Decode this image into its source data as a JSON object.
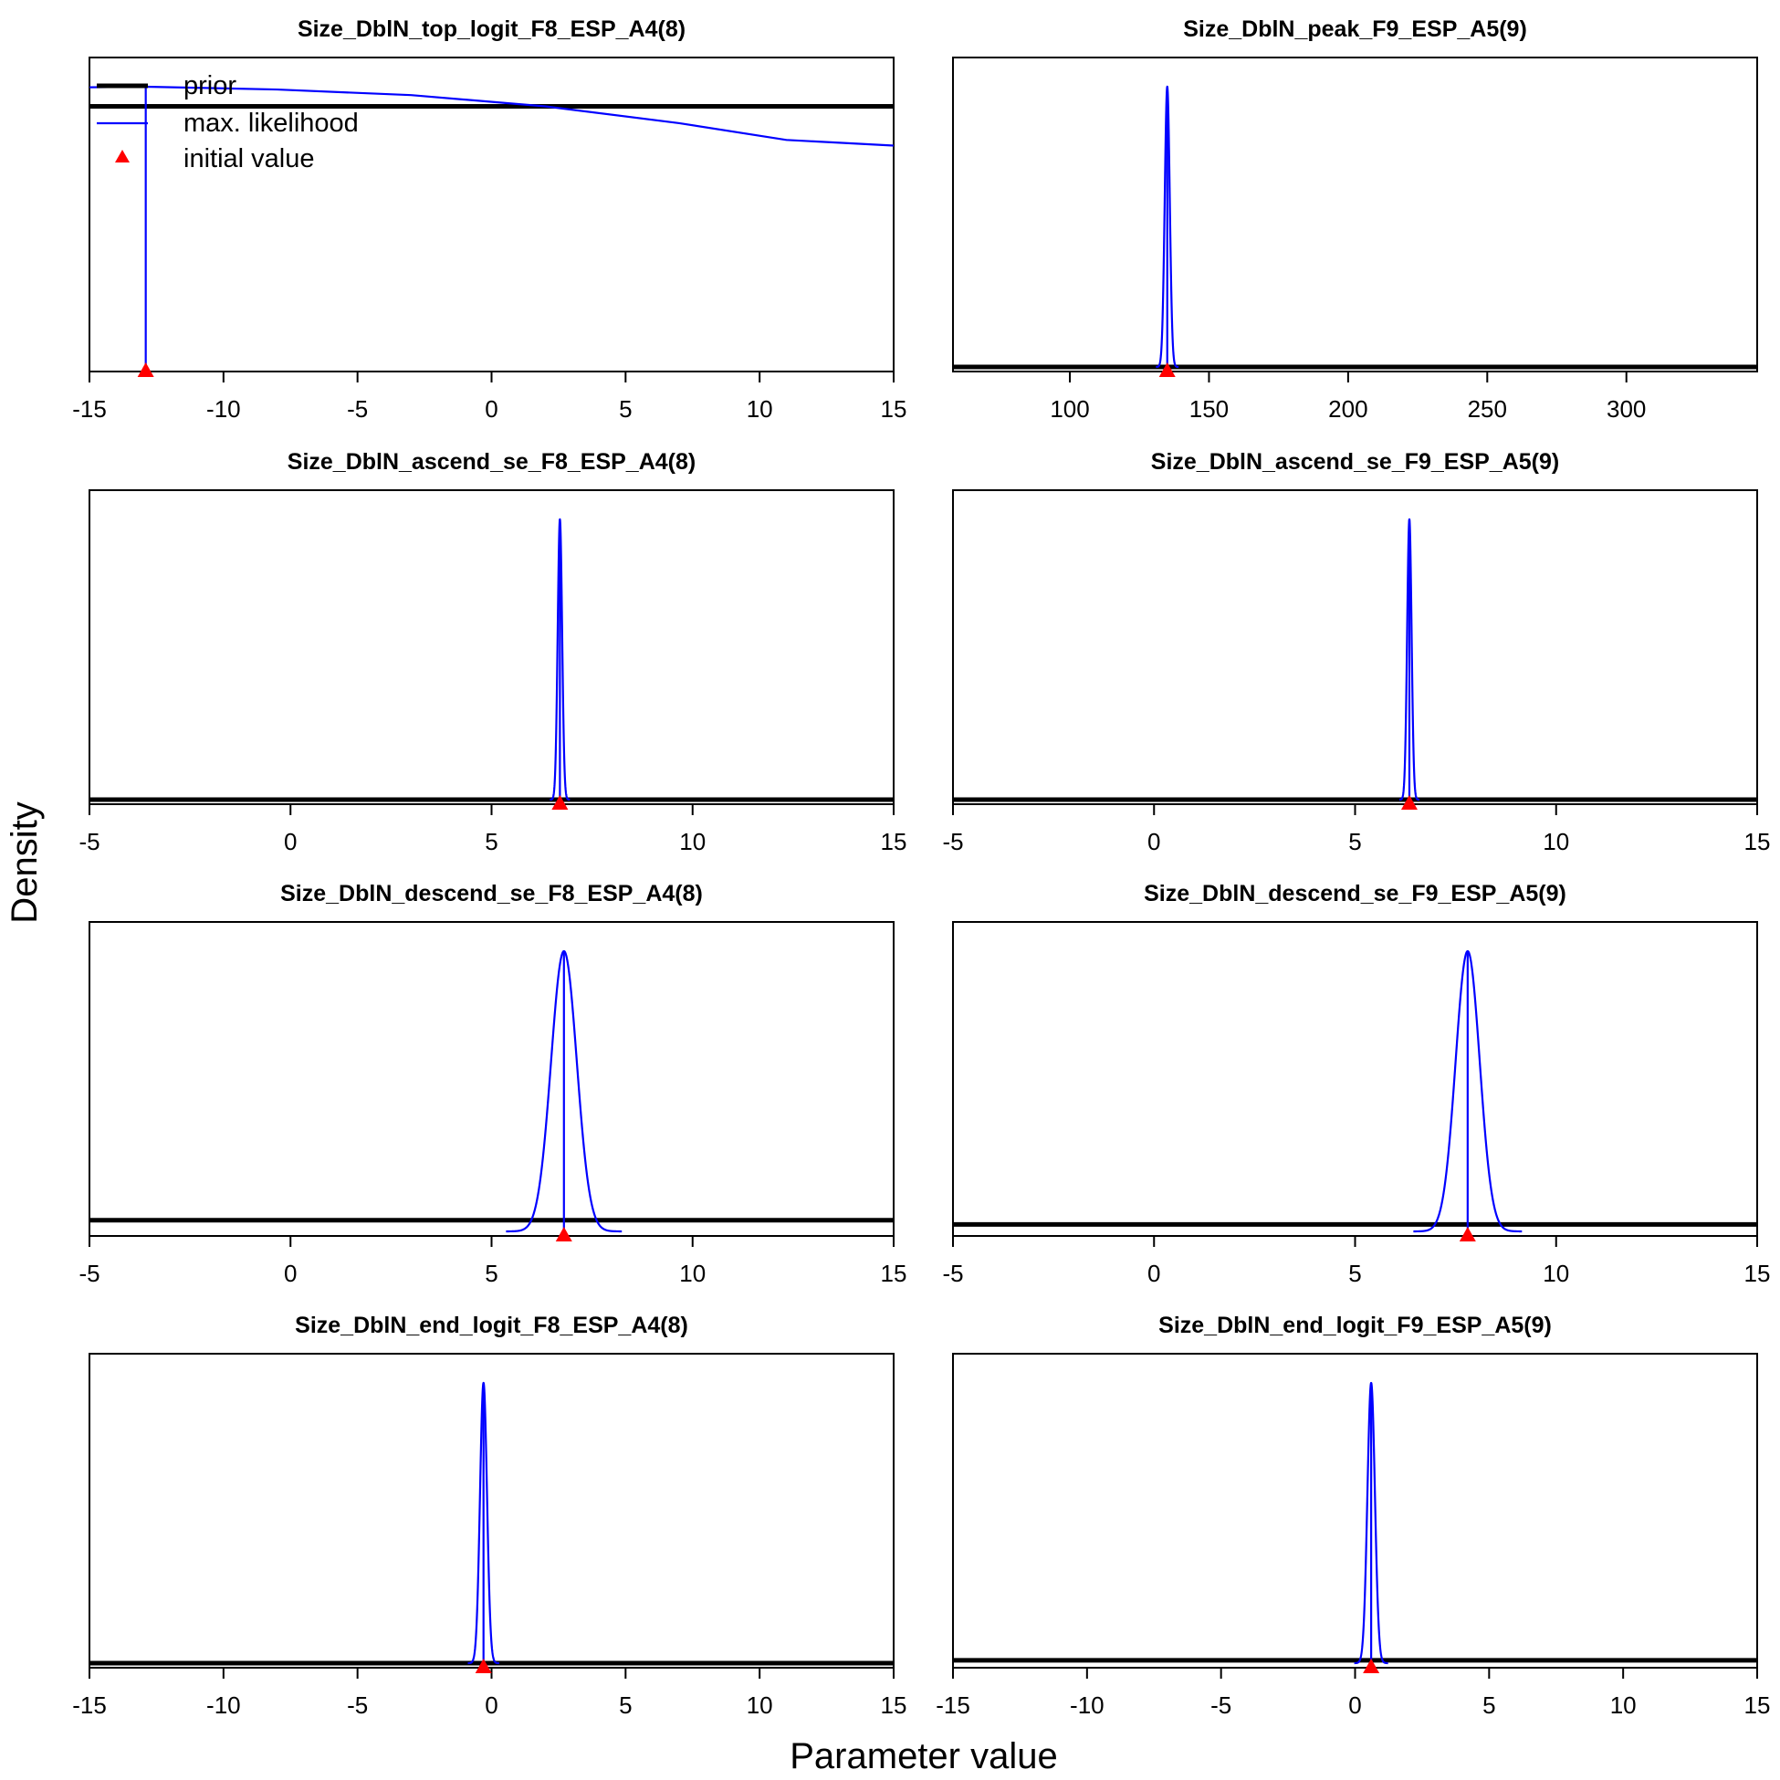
{
  "chart_data": {
    "type": "line",
    "ylabel": "Density",
    "xlabel": "Parameter value",
    "legend": {
      "placement": "top-left of first panel",
      "entries": [
        {
          "label": "prior",
          "color": "#000000",
          "style": "thick line"
        },
        {
          "label": "max. likelihood",
          "color": "#0000ff",
          "style": "line"
        },
        {
          "label": "initial value",
          "color": "#ff0000",
          "style": "triangle"
        }
      ]
    },
    "colors": {
      "prior": "#000000",
      "mle": "#0000ff",
      "initial": "#ff0000"
    },
    "panels": [
      {
        "title": "Size_DblN_top_logit_F8_ESP_A4(8)",
        "xlim": [
          -15,
          15
        ],
        "xticks": [
          "-15",
          "-10",
          "-5",
          "0",
          "5",
          "10",
          "15"
        ],
        "prior": {
          "kind": "flat",
          "level": 0.93
        },
        "mle": {
          "kind": "broad",
          "estimate": -12.9,
          "curve": [
            [
              -15,
              0.998
            ],
            [
              -12.9,
              1.0
            ],
            [
              -8,
              0.99
            ],
            [
              -3,
              0.97
            ],
            [
              2,
              0.93
            ],
            [
              7,
              0.87
            ],
            [
              11,
              0.81
            ],
            [
              15,
              0.79
            ]
          ]
        },
        "initial": -12.9,
        "legend": true
      },
      {
        "title": "Size_DblN_peak_F9_ESP_A5(9)",
        "xlim": [
          58,
          347
        ],
        "xticks": [
          "100",
          "150",
          "200",
          "250",
          "300"
        ],
        "prior": {
          "kind": "flat",
          "level": 0.0
        },
        "mle": {
          "kind": "normal",
          "estimate": 135,
          "sd": 0.9,
          "peak": 1.0
        },
        "initial": 135,
        "legend": false
      },
      {
        "title": "Size_DblN_ascend_se_F8_ESP_A4(8)",
        "xlim": [
          -5,
          15
        ],
        "xticks": [
          "-5",
          "0",
          "5",
          "10",
          "15"
        ],
        "prior": {
          "kind": "flat",
          "level": 0.0
        },
        "mle": {
          "kind": "normal",
          "estimate": 6.7,
          "sd": 0.055,
          "peak": 1.0
        },
        "initial": 6.7,
        "legend": false
      },
      {
        "title": "Size_DblN_ascend_se_F9_ESP_A5(9)",
        "xlim": [
          -5,
          15
        ],
        "xticks": [
          "-5",
          "0",
          "5",
          "10",
          "15"
        ],
        "prior": {
          "kind": "flat",
          "level": 0.0
        },
        "mle": {
          "kind": "normal",
          "estimate": 6.35,
          "sd": 0.055,
          "peak": 1.0
        },
        "initial": 6.35,
        "legend": false
      },
      {
        "title": "Size_DblN_descend_se_F8_ESP_A4(8)",
        "xlim": [
          -5,
          15
        ],
        "xticks": [
          "-5",
          "0",
          "5",
          "10",
          "15"
        ],
        "prior": {
          "kind": "flat",
          "level": 0.04
        },
        "mle": {
          "kind": "normal",
          "estimate": 6.8,
          "sd": 0.32,
          "peak": 1.0
        },
        "initial": 6.8,
        "legend": false
      },
      {
        "title": "Size_DblN_descend_se_F9_ESP_A5(9)",
        "xlim": [
          -5,
          15
        ],
        "xticks": [
          "-5",
          "0",
          "5",
          "10",
          "15"
        ],
        "prior": {
          "kind": "flat",
          "level": 0.025
        },
        "mle": {
          "kind": "normal",
          "estimate": 7.8,
          "sd": 0.3,
          "peak": 1.0
        },
        "initial": 7.8,
        "legend": false
      },
      {
        "title": "Size_DblN_end_logit_F8_ESP_A4(8)",
        "xlim": [
          -15,
          15
        ],
        "xticks": [
          "-15",
          "-10",
          "-5",
          "0",
          "5",
          "10",
          "15"
        ],
        "prior": {
          "kind": "flat",
          "level": 0.0
        },
        "mle": {
          "kind": "normal",
          "estimate": -0.3,
          "sd": 0.13,
          "peak": 1.0
        },
        "initial": -0.3,
        "legend": false
      },
      {
        "title": "Size_DblN_end_logit_F9_ESP_A5(9)",
        "xlim": [
          -15,
          15
        ],
        "xticks": [
          "-15",
          "-10",
          "-5",
          "0",
          "5",
          "10",
          "15"
        ],
        "prior": {
          "kind": "flat",
          "level": 0.01
        },
        "mle": {
          "kind": "normal",
          "estimate": 0.6,
          "sd": 0.14,
          "peak": 1.0
        },
        "initial": 0.6,
        "legend": false
      }
    ]
  }
}
